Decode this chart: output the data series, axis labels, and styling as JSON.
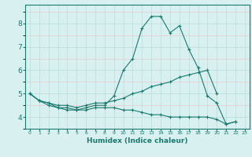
{
  "xlabel": "Humidex (Indice chaleur)",
  "x": [
    0,
    1,
    2,
    3,
    4,
    5,
    6,
    7,
    8,
    9,
    10,
    11,
    12,
    13,
    14,
    15,
    16,
    17,
    18,
    19,
    20,
    21,
    22,
    23
  ],
  "line1": [
    5.0,
    4.7,
    4.6,
    4.4,
    4.3,
    4.3,
    4.4,
    4.5,
    4.5,
    4.9,
    6.0,
    6.5,
    7.8,
    8.3,
    8.3,
    7.6,
    7.9,
    6.9,
    6.1,
    4.9,
    4.6,
    3.7,
    3.8,
    null
  ],
  "line2": [
    5.0,
    4.7,
    4.6,
    4.5,
    4.5,
    4.4,
    4.5,
    4.6,
    4.6,
    4.7,
    4.8,
    5.0,
    5.1,
    5.3,
    5.4,
    5.5,
    5.7,
    5.8,
    5.9,
    6.0,
    5.0,
    null,
    null,
    null
  ],
  "line3": [
    5.0,
    4.7,
    4.5,
    4.4,
    4.4,
    4.3,
    4.3,
    4.4,
    4.4,
    4.4,
    4.3,
    4.3,
    4.2,
    4.1,
    4.1,
    4.0,
    4.0,
    4.0,
    4.0,
    4.0,
    3.9,
    3.7,
    3.8,
    null
  ],
  "line_color": "#1a7a6e",
  "bg_color": "#d8f0f0",
  "grid_color": "#b8dcd8",
  "grid_color_minor": "#f0c0c8",
  "ylim": [
    3.5,
    8.8
  ],
  "yticks": [
    4,
    5,
    6,
    7,
    8
  ],
  "xticks": [
    0,
    1,
    2,
    3,
    4,
    5,
    6,
    7,
    8,
    9,
    10,
    11,
    12,
    13,
    14,
    15,
    16,
    17,
    18,
    19,
    20,
    21,
    22,
    23
  ]
}
